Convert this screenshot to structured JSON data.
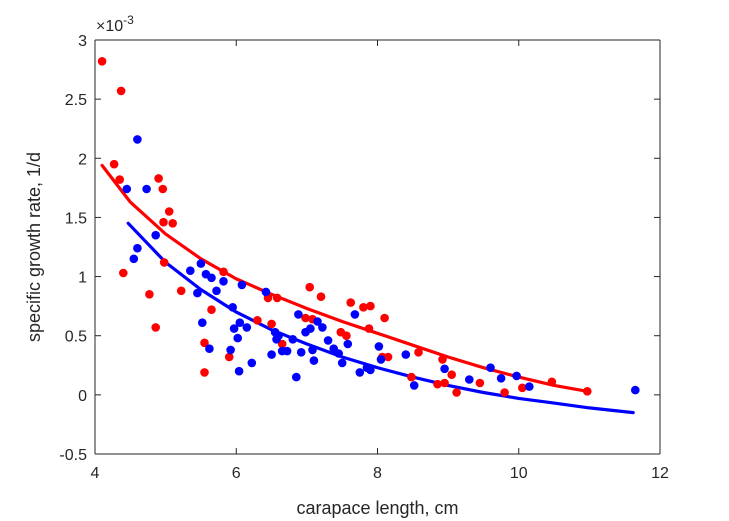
{
  "chart_data": {
    "type": "scatter",
    "title": "",
    "xlabel": "carapace length, cm",
    "ylabel": "specific growth rate, 1/d",
    "y_exponent_label": "×10",
    "y_exponent_power": "-3",
    "xlim": [
      4,
      12
    ],
    "ylim": [
      -0.5,
      3
    ],
    "x_ticks": [
      4,
      6,
      8,
      10,
      12
    ],
    "y_ticks": [
      -0.5,
      0,
      0.5,
      1,
      1.5,
      2,
      2.5,
      3
    ],
    "x_tick_labels": [
      "4",
      "6",
      "8",
      "10",
      "12"
    ],
    "y_tick_labels": [
      "-0.5",
      "0",
      "0.5",
      "1",
      "1.5",
      "2",
      "2.5",
      "3"
    ],
    "grid": false,
    "legend": "none",
    "series": [
      {
        "color": "#ff0000",
        "points": [
          [
            4.1,
            2.82
          ],
          [
            4.27,
            1.95
          ],
          [
            4.37,
            2.57
          ],
          [
            4.35,
            1.82
          ],
          [
            4.4,
            1.03
          ],
          [
            4.77,
            0.85
          ],
          [
            4.86,
            0.57
          ],
          [
            4.9,
            1.83
          ],
          [
            4.96,
            1.74
          ],
          [
            4.97,
            1.46
          ],
          [
            4.98,
            1.12
          ],
          [
            5.05,
            1.55
          ],
          [
            5.1,
            1.45
          ],
          [
            5.22,
            0.88
          ],
          [
            5.55,
            0.44
          ],
          [
            5.55,
            0.19
          ],
          [
            5.65,
            0.72
          ],
          [
            5.82,
            1.04
          ],
          [
            5.9,
            0.32
          ],
          [
            6.3,
            0.63
          ],
          [
            6.45,
            0.82
          ],
          [
            6.5,
            0.6
          ],
          [
            6.58,
            0.82
          ],
          [
            6.65,
            0.43
          ],
          [
            6.98,
            0.65
          ],
          [
            7.04,
            0.91
          ],
          [
            7.08,
            0.64
          ],
          [
            7.2,
            0.83
          ],
          [
            7.48,
            0.53
          ],
          [
            7.56,
            0.5
          ],
          [
            7.62,
            0.78
          ],
          [
            7.8,
            0.74
          ],
          [
            7.88,
            0.56
          ],
          [
            7.9,
            0.75
          ],
          [
            8.07,
            0.32
          ],
          [
            8.1,
            0.65
          ],
          [
            8.15,
            0.32
          ],
          [
            8.48,
            0.15
          ],
          [
            8.58,
            0.36
          ],
          [
            8.85,
            0.09
          ],
          [
            8.92,
            0.3
          ],
          [
            8.95,
            0.1
          ],
          [
            9.05,
            0.17
          ],
          [
            9.12,
            0.02
          ],
          [
            9.45,
            0.1
          ],
          [
            9.8,
            0.02
          ],
          [
            10.05,
            0.06
          ],
          [
            10.47,
            0.11
          ],
          [
            10.97,
            0.03
          ]
        ],
        "fit": [
          [
            4.1,
            1.94
          ],
          [
            4.5,
            1.63
          ],
          [
            5.0,
            1.36
          ],
          [
            5.5,
            1.15
          ],
          [
            6.0,
            0.98
          ],
          [
            6.5,
            0.85
          ],
          [
            7.0,
            0.73
          ],
          [
            7.5,
            0.62
          ],
          [
            8.0,
            0.52
          ],
          [
            8.5,
            0.42
          ],
          [
            9.0,
            0.32
          ],
          [
            9.5,
            0.23
          ],
          [
            10.0,
            0.15
          ],
          [
            10.5,
            0.08
          ],
          [
            10.97,
            0.03
          ]
        ]
      },
      {
        "color": "#0000ff",
        "points": [
          [
            4.45,
            1.74
          ],
          [
            4.55,
            1.15
          ],
          [
            4.6,
            2.16
          ],
          [
            4.6,
            1.24
          ],
          [
            4.73,
            1.74
          ],
          [
            4.86,
            1.35
          ],
          [
            5.35,
            1.05
          ],
          [
            5.45,
            0.86
          ],
          [
            5.5,
            1.11
          ],
          [
            5.52,
            0.61
          ],
          [
            5.57,
            1.02
          ],
          [
            5.62,
            0.39
          ],
          [
            5.65,
            0.99
          ],
          [
            5.72,
            0.88
          ],
          [
            5.82,
            0.96
          ],
          [
            5.92,
            0.38
          ],
          [
            5.95,
            0.74
          ],
          [
            5.97,
            0.56
          ],
          [
            6.02,
            0.48
          ],
          [
            6.04,
            0.2
          ],
          [
            6.05,
            0.61
          ],
          [
            6.08,
            0.93
          ],
          [
            6.15,
            0.57
          ],
          [
            6.22,
            0.27
          ],
          [
            6.42,
            0.87
          ],
          [
            6.5,
            0.34
          ],
          [
            6.55,
            0.53
          ],
          [
            6.57,
            0.47
          ],
          [
            6.6,
            0.5
          ],
          [
            6.65,
            0.37
          ],
          [
            6.72,
            0.37
          ],
          [
            6.8,
            0.47
          ],
          [
            6.85,
            0.15
          ],
          [
            6.88,
            0.68
          ],
          [
            6.92,
            0.36
          ],
          [
            6.98,
            0.53
          ],
          [
            7.05,
            0.56
          ],
          [
            7.08,
            0.38
          ],
          [
            7.1,
            0.29
          ],
          [
            7.15,
            0.62
          ],
          [
            7.22,
            0.57
          ],
          [
            7.3,
            0.46
          ],
          [
            7.38,
            0.39
          ],
          [
            7.45,
            0.35
          ],
          [
            7.5,
            0.27
          ],
          [
            7.58,
            0.43
          ],
          [
            7.68,
            0.68
          ],
          [
            7.75,
            0.19
          ],
          [
            7.85,
            0.23
          ],
          [
            7.9,
            0.21
          ],
          [
            8.02,
            0.41
          ],
          [
            8.05,
            0.3
          ],
          [
            8.4,
            0.34
          ],
          [
            8.52,
            0.08
          ],
          [
            8.95,
            0.22
          ],
          [
            9.3,
            0.13
          ],
          [
            9.6,
            0.23
          ],
          [
            9.75,
            0.14
          ],
          [
            9.97,
            0.16
          ],
          [
            10.15,
            0.07
          ],
          [
            11.65,
            0.04
          ]
        ],
        "fit": [
          [
            4.47,
            1.45
          ],
          [
            5.0,
            1.12
          ],
          [
            5.5,
            0.89
          ],
          [
            6.0,
            0.7
          ],
          [
            6.5,
            0.55
          ],
          [
            7.0,
            0.43
          ],
          [
            7.5,
            0.32
          ],
          [
            8.0,
            0.23
          ],
          [
            8.5,
            0.15
          ],
          [
            9.0,
            0.08
          ],
          [
            9.5,
            0.02
          ],
          [
            10.0,
            -0.03
          ],
          [
            10.5,
            -0.07
          ],
          [
            11.0,
            -0.11
          ],
          [
            11.62,
            -0.15
          ]
        ]
      }
    ]
  }
}
